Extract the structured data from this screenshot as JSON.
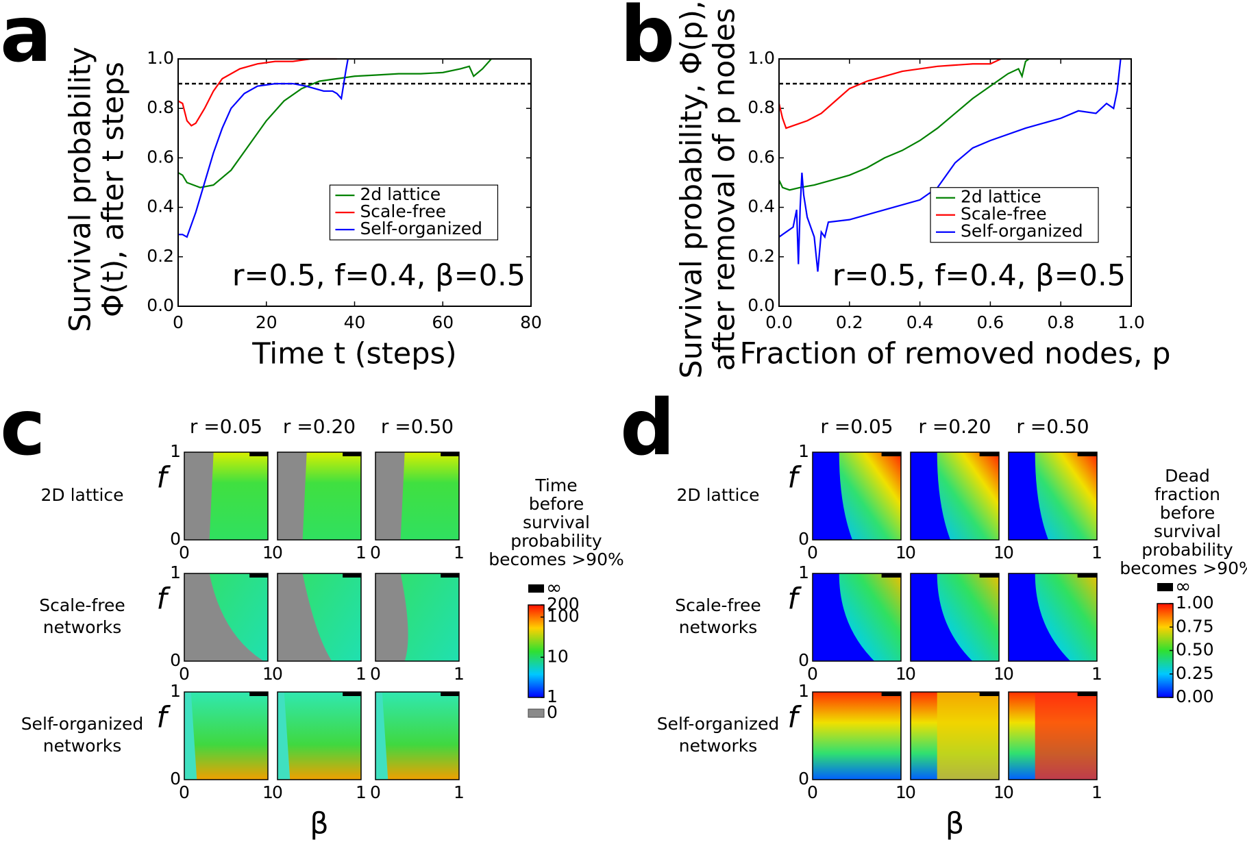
{
  "chart_data": [
    {
      "type": "line",
      "panel": "a",
      "ylabel": [
        "Survival probability",
        "Φ(t), after t steps"
      ],
      "xlabel": "Time t (steps)",
      "annotation": "r=0.5, f=0.4, β=0.5",
      "threshold": 0.9,
      "legend": "center right",
      "xlim": [
        0,
        80
      ],
      "ylim": [
        0,
        1
      ],
      "xticks": [
        0,
        20,
        40,
        60,
        80
      ],
      "yticks": [
        {
          "value": 0,
          "label": "0.0"
        },
        0.2,
        0.4,
        0.6,
        0.8,
        {
          "value": 1,
          "label": "1.0"
        }
      ],
      "series": [
        {
          "name": "2d lattice",
          "color": "#008000",
          "x": [
            0,
            1,
            2,
            5,
            8,
            12,
            16,
            20,
            24,
            28,
            32,
            36,
            40,
            45,
            50,
            55,
            60,
            64,
            66,
            67,
            69,
            71
          ],
          "values": [
            0.54,
            0.53,
            0.5,
            0.48,
            0.49,
            0.55,
            0.65,
            0.75,
            0.83,
            0.88,
            0.91,
            0.92,
            0.93,
            0.935,
            0.94,
            0.94,
            0.945,
            0.96,
            0.97,
            0.93,
            0.96,
            1.0
          ]
        },
        {
          "name": "Scale-free",
          "color": "#ff0000",
          "x": [
            0,
            1,
            2,
            3,
            4,
            6,
            8,
            10,
            14,
            18,
            22,
            26,
            30,
            34,
            36
          ],
          "values": [
            0.83,
            0.82,
            0.75,
            0.73,
            0.74,
            0.8,
            0.87,
            0.92,
            0.96,
            0.98,
            0.99,
            0.99,
            1.0,
            1.0,
            1.0
          ]
        },
        {
          "name": "Self-organized",
          "color": "#0000ff",
          "x": [
            0,
            1,
            2,
            4,
            6,
            8,
            10,
            12,
            15,
            18,
            22,
            26,
            29,
            31,
            33,
            35,
            36,
            37,
            38,
            38.5
          ],
          "values": [
            0.29,
            0.29,
            0.28,
            0.38,
            0.5,
            0.62,
            0.72,
            0.8,
            0.86,
            0.89,
            0.9,
            0.9,
            0.89,
            0.88,
            0.87,
            0.87,
            0.86,
            0.84,
            0.95,
            1.0
          ]
        }
      ]
    },
    {
      "type": "line",
      "panel": "b",
      "ylabel": [
        "Survival probability, Φ(p),",
        "after removal of p nodes"
      ],
      "xlabel": "Fraction of removed nodes, p",
      "annotation": "r=0.5, f=0.4, β=0.5",
      "threshold": 0.9,
      "legend": "lower right",
      "xlim": [
        0,
        1
      ],
      "ylim": [
        0,
        1
      ],
      "xticks": [
        {
          "value": 0,
          "label": "0.0"
        },
        0.2,
        0.4,
        0.6,
        0.8,
        {
          "value": 1,
          "label": "1.0"
        }
      ],
      "yticks": [
        {
          "value": 0,
          "label": "0.0"
        },
        0.2,
        0.4,
        0.6,
        0.8,
        {
          "value": 1,
          "label": "1.0"
        }
      ],
      "series": [
        {
          "name": "2d lattice",
          "color": "#008000",
          "x": [
            0,
            0.01,
            0.03,
            0.06,
            0.1,
            0.15,
            0.2,
            0.25,
            0.3,
            0.35,
            0.4,
            0.45,
            0.5,
            0.55,
            0.6,
            0.65,
            0.68,
            0.69,
            0.7,
            0.71
          ],
          "values": [
            0.51,
            0.48,
            0.47,
            0.48,
            0.49,
            0.51,
            0.53,
            0.56,
            0.6,
            0.63,
            0.67,
            0.72,
            0.78,
            0.84,
            0.89,
            0.94,
            0.96,
            0.93,
            0.99,
            1.0
          ]
        },
        {
          "name": "Scale-free",
          "color": "#ff0000",
          "x": [
            0,
            0.01,
            0.02,
            0.04,
            0.08,
            0.12,
            0.16,
            0.2,
            0.25,
            0.3,
            0.35,
            0.4,
            0.45,
            0.5,
            0.55,
            0.6,
            0.63
          ],
          "values": [
            0.82,
            0.76,
            0.72,
            0.73,
            0.75,
            0.78,
            0.83,
            0.88,
            0.91,
            0.93,
            0.95,
            0.96,
            0.97,
            0.975,
            0.98,
            0.98,
            1.0
          ]
        },
        {
          "name": "Self-organized",
          "color": "#0000ff",
          "x": [
            0,
            0.02,
            0.04,
            0.05,
            0.055,
            0.06,
            0.065,
            0.07,
            0.08,
            0.1,
            0.11,
            0.12,
            0.13,
            0.14,
            0.2,
            0.3,
            0.4,
            0.45,
            0.5,
            0.55,
            0.6,
            0.7,
            0.8,
            0.85,
            0.9,
            0.93,
            0.95,
            0.96,
            0.97
          ],
          "values": [
            0.28,
            0.3,
            0.32,
            0.39,
            0.17,
            0.4,
            0.54,
            0.45,
            0.36,
            0.28,
            0.14,
            0.3,
            0.28,
            0.34,
            0.35,
            0.39,
            0.43,
            0.48,
            0.58,
            0.64,
            0.67,
            0.72,
            0.76,
            0.79,
            0.78,
            0.82,
            0.8,
            0.87,
            1.0
          ]
        }
      ]
    },
    {
      "type": "heatmap",
      "panel": "c",
      "columns": [
        "r =0.05",
        "r =0.20",
        "r =0.50"
      ],
      "rows": [
        [
          "2D lattice"
        ],
        [
          "Scale-free",
          "networks"
        ],
        [
          "Self-organized",
          "networks"
        ]
      ],
      "xlabel": "β",
      "ylabel": "f",
      "xticks": [
        0,
        1
      ],
      "yticks": [
        0,
        1
      ],
      "colorbar": {
        "title": [
          "Time",
          "before",
          "survival",
          "probability",
          "becomes >90%"
        ],
        "log": true,
        "lim": [
          1,
          200
        ],
        "ticks": [
          1,
          10,
          100,
          200
        ],
        "top_label": "∞",
        "bottom_label": "0"
      }
    },
    {
      "type": "heatmap",
      "panel": "d",
      "columns": [
        "r =0.05",
        "r =0.20",
        "r =0.50"
      ],
      "rows": [
        [
          "2D lattice"
        ],
        [
          "Scale-free",
          "networks"
        ],
        [
          "Self-organized",
          "networks"
        ]
      ],
      "xlabel": "β",
      "ylabel": "f",
      "xticks": [
        0,
        1
      ],
      "yticks": [
        0,
        1
      ],
      "colorbar": {
        "title": [
          "Dead",
          "fraction",
          "before",
          "survival",
          "probability",
          "becomes >90%"
        ],
        "log": false,
        "lim": [
          0,
          1
        ],
        "ticks": [
          {
            "value": 0,
            "label": "0.00"
          },
          {
            "value": 0.25,
            "label": "0.25"
          },
          {
            "value": 0.5,
            "label": "0.50"
          },
          {
            "value": 0.75,
            "label": "0.75"
          },
          {
            "value": 1,
            "label": "1.00"
          }
        ],
        "top_label": "∞"
      }
    }
  ]
}
